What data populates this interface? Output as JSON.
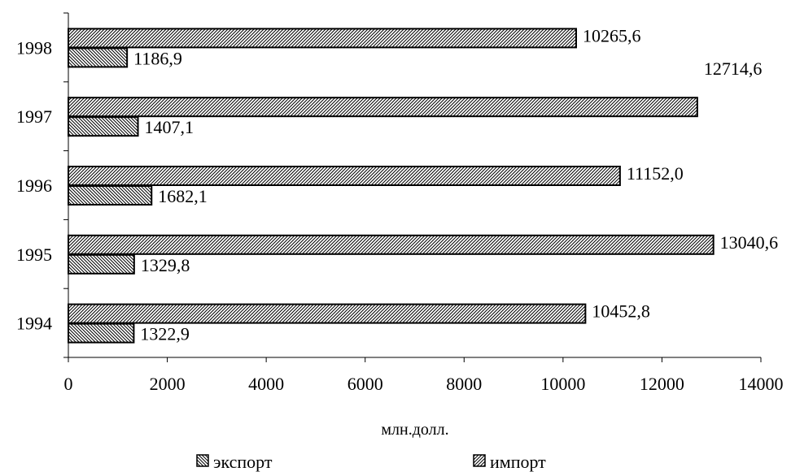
{
  "chart_data": {
    "type": "bar",
    "orientation": "horizontal",
    "categories": [
      "1994",
      "1995",
      "1996",
      "1997",
      "1998"
    ],
    "series": [
      {
        "name": "экспорт",
        "values": [
          1322.9,
          1329.8,
          1682.1,
          1407.1,
          1186.9
        ],
        "data_labels": [
          "1322,9",
          "1329,8",
          "1682,1",
          "1407,1",
          "1186,9"
        ]
      },
      {
        "name": "импорт",
        "values": [
          10452.8,
          13040.6,
          11152.0,
          12714.6,
          10265.6
        ],
        "data_labels": [
          "10452,8",
          "13040,6",
          "11152,0",
          "12714,6",
          "10265,6"
        ]
      }
    ],
    "xlim": [
      0,
      14000
    ],
    "x_ticks": [
      0,
      2000,
      4000,
      6000,
      8000,
      10000,
      12000,
      14000
    ],
    "xlabel": "млн.долл.",
    "ylabel": "",
    "title": "",
    "grid": false,
    "legend_position": "bottom"
  }
}
